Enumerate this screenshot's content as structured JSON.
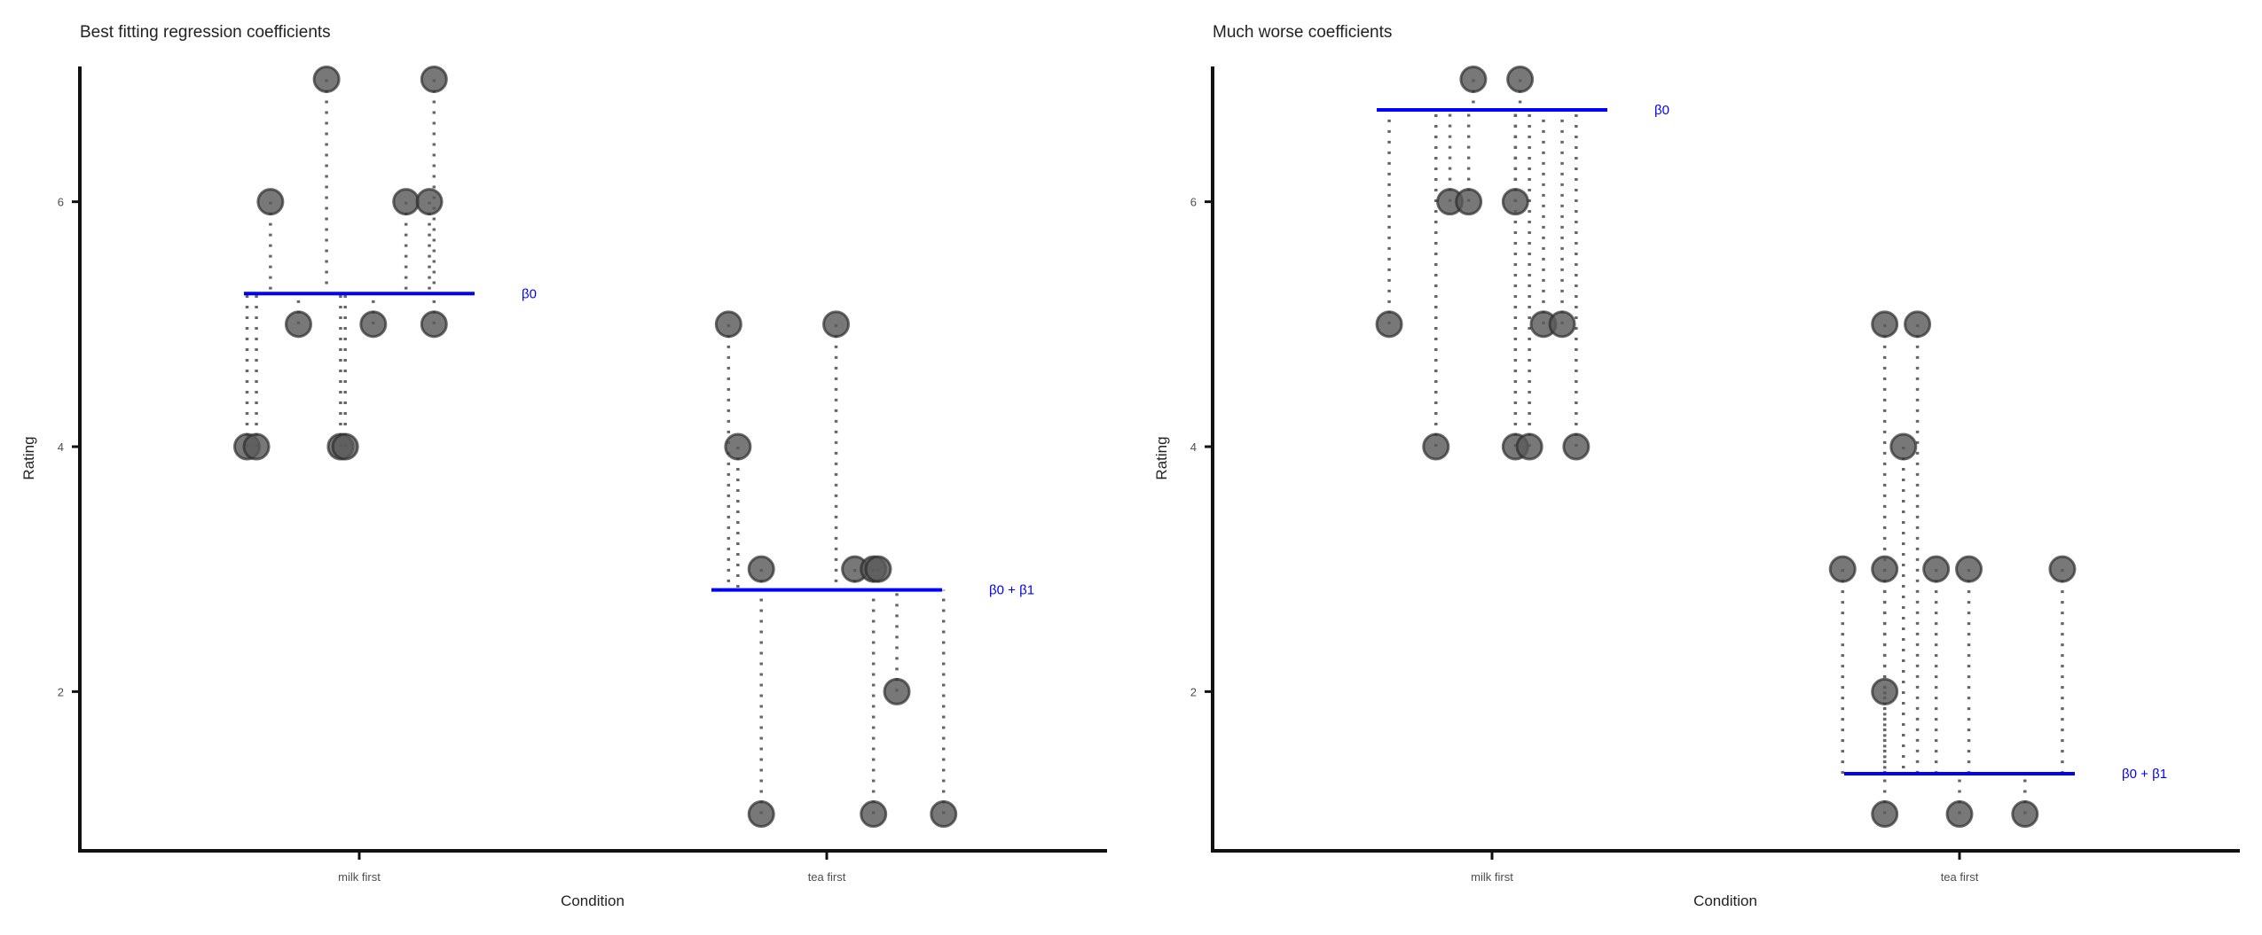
{
  "colors": {
    "point_fill": "#5a5a5a",
    "point_stroke": "#2e2e2e",
    "residual_line": "#666666",
    "beta_line": "#0000ff",
    "axis": "#111111",
    "text": "#222222"
  },
  "chart_data": [
    {
      "type": "scatter",
      "title": "Best fitting regression coefficients",
      "xlabel": "Condition",
      "ylabel": "Rating",
      "categories": [
        "milk first",
        "tea first"
      ],
      "ylim": [
        0.7,
        7.3
      ],
      "yticks": [
        2,
        4,
        6
      ],
      "grid": false,
      "legend": "none",
      "fitted": [
        {
          "label": "β0",
          "category": 0,
          "value": 5.25
        },
        {
          "label": "β0 + β1",
          "category": 1,
          "value": 2.83
        }
      ],
      "points": [
        {
          "category": 0,
          "jitter": -0.24,
          "y": 4
        },
        {
          "category": 0,
          "jitter": -0.22,
          "y": 4
        },
        {
          "category": 0,
          "jitter": -0.19,
          "y": 6
        },
        {
          "category": 0,
          "jitter": -0.13,
          "y": 5
        },
        {
          "category": 0,
          "jitter": -0.07,
          "y": 7
        },
        {
          "category": 0,
          "jitter": -0.04,
          "y": 4
        },
        {
          "category": 0,
          "jitter": -0.03,
          "y": 4
        },
        {
          "category": 0,
          "jitter": 0.03,
          "y": 5
        },
        {
          "category": 0,
          "jitter": 0.1,
          "y": 6
        },
        {
          "category": 0,
          "jitter": 0.15,
          "y": 6
        },
        {
          "category": 0,
          "jitter": 0.16,
          "y": 5
        },
        {
          "category": 0,
          "jitter": 0.16,
          "y": 7
        },
        {
          "category": 1,
          "jitter": -0.21,
          "y": 5
        },
        {
          "category": 1,
          "jitter": -0.19,
          "y": 4
        },
        {
          "category": 1,
          "jitter": -0.14,
          "y": 3
        },
        {
          "category": 1,
          "jitter": -0.14,
          "y": 1
        },
        {
          "category": 1,
          "jitter": 0.02,
          "y": 5
        },
        {
          "category": 1,
          "jitter": 0.06,
          "y": 3
        },
        {
          "category": 1,
          "jitter": 0.1,
          "y": 3
        },
        {
          "category": 1,
          "jitter": 0.11,
          "y": 3
        },
        {
          "category": 1,
          "jitter": 0.1,
          "y": 1
        },
        {
          "category": 1,
          "jitter": 0.15,
          "y": 2
        },
        {
          "category": 1,
          "jitter": 0.25,
          "y": 1
        }
      ]
    },
    {
      "type": "scatter",
      "title": "Much worse coefficients",
      "xlabel": "Condition",
      "ylabel": "Rating",
      "categories": [
        "milk first",
        "tea first"
      ],
      "ylim": [
        0.7,
        7.3
      ],
      "yticks": [
        2,
        4,
        6
      ],
      "grid": false,
      "legend": "none",
      "fitted": [
        {
          "label": "β0",
          "category": 0,
          "value": 6.75
        },
        {
          "label": "β0 + β1",
          "category": 1,
          "value": 1.33
        }
      ],
      "points": [
        {
          "category": 0,
          "jitter": -0.22,
          "y": 5
        },
        {
          "category": 0,
          "jitter": -0.12,
          "y": 4
        },
        {
          "category": 0,
          "jitter": -0.09,
          "y": 6
        },
        {
          "category": 0,
          "jitter": -0.05,
          "y": 6
        },
        {
          "category": 0,
          "jitter": -0.04,
          "y": 7
        },
        {
          "category": 0,
          "jitter": 0.05,
          "y": 6
        },
        {
          "category": 0,
          "jitter": 0.05,
          "y": 4
        },
        {
          "category": 0,
          "jitter": 0.06,
          "y": 7
        },
        {
          "category": 0,
          "jitter": 0.08,
          "y": 4
        },
        {
          "category": 0,
          "jitter": 0.11,
          "y": 5
        },
        {
          "category": 0,
          "jitter": 0.15,
          "y": 5
        },
        {
          "category": 0,
          "jitter": 0.18,
          "y": 4
        },
        {
          "category": 1,
          "jitter": -0.25,
          "y": 3
        },
        {
          "category": 1,
          "jitter": -0.16,
          "y": 5
        },
        {
          "category": 1,
          "jitter": -0.16,
          "y": 3
        },
        {
          "category": 1,
          "jitter": -0.16,
          "y": 2
        },
        {
          "category": 1,
          "jitter": -0.16,
          "y": 1
        },
        {
          "category": 1,
          "jitter": -0.12,
          "y": 4
        },
        {
          "category": 1,
          "jitter": -0.09,
          "y": 5
        },
        {
          "category": 1,
          "jitter": -0.05,
          "y": 3
        },
        {
          "category": 1,
          "jitter": 0.0,
          "y": 1
        },
        {
          "category": 1,
          "jitter": 0.02,
          "y": 3
        },
        {
          "category": 1,
          "jitter": 0.14,
          "y": 1
        },
        {
          "category": 1,
          "jitter": 0.22,
          "y": 3
        }
      ]
    }
  ]
}
